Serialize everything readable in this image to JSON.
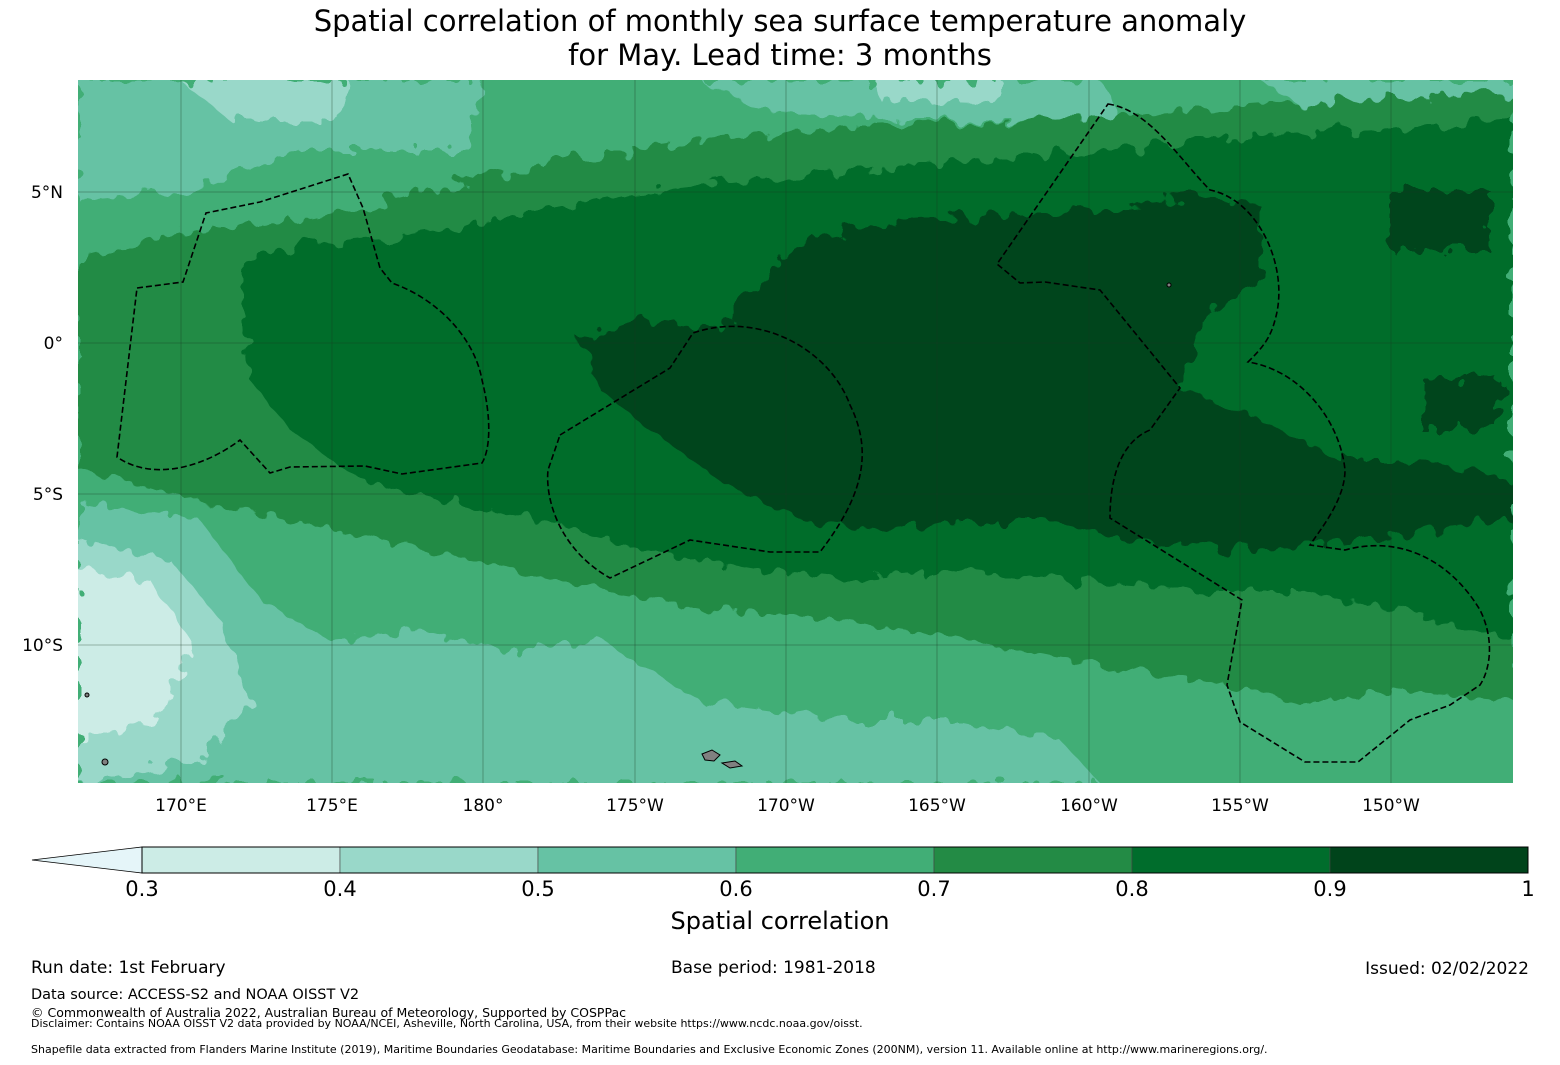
{
  "title_line1": "Spatial correlation of monthly sea surface temperature anomaly",
  "title_line2": "for May. Lead time: 3 months",
  "map": {
    "lon_labels": [
      "170°E",
      "175°E",
      "180°",
      "175°W",
      "170°W",
      "165°W",
      "160°W",
      "155°W",
      "150°W"
    ],
    "lat_labels": [
      "5°N",
      "0°",
      "5°S",
      "10°S"
    ]
  },
  "colorbar": {
    "label": "Spatial correlation",
    "ticks": [
      "0.3",
      "0.4",
      "0.5",
      "0.6",
      "0.7",
      "0.8",
      "0.9",
      "1"
    ],
    "colors": [
      "#e5f5f9",
      "#ccece6",
      "#99d8c9",
      "#66c2a4",
      "#41ae76",
      "#238b45",
      "#006d2c",
      "#00441b"
    ]
  },
  "footer": {
    "run_date": "Run date: 1st February",
    "base_period": "Base period: 1981-2018",
    "issued": "Issued: 02/02/2022",
    "data_source": "Data source: ACCESS-S2 and NOAA OISST V2",
    "copyright": "© Commonwealth of Australia 2022, Australian Bureau of Meteorology, Supported by COSPPac",
    "disclaimer": "Disclaimer: Contains NOAA OISST V2 data provided by NOAA/NCEI, Asheville, North Carolina, USA, from their website https://www.ncdc.noaa.gov/oisst.",
    "shapefile": "Shapefile data extracted from Flanders Marine Institute (2019), Maritime Boundaries Geodatabase: Maritime Boundaries and Exclusive Economic Zones (200NM), version 11. Available online at http://www.marineregions.org/."
  }
}
